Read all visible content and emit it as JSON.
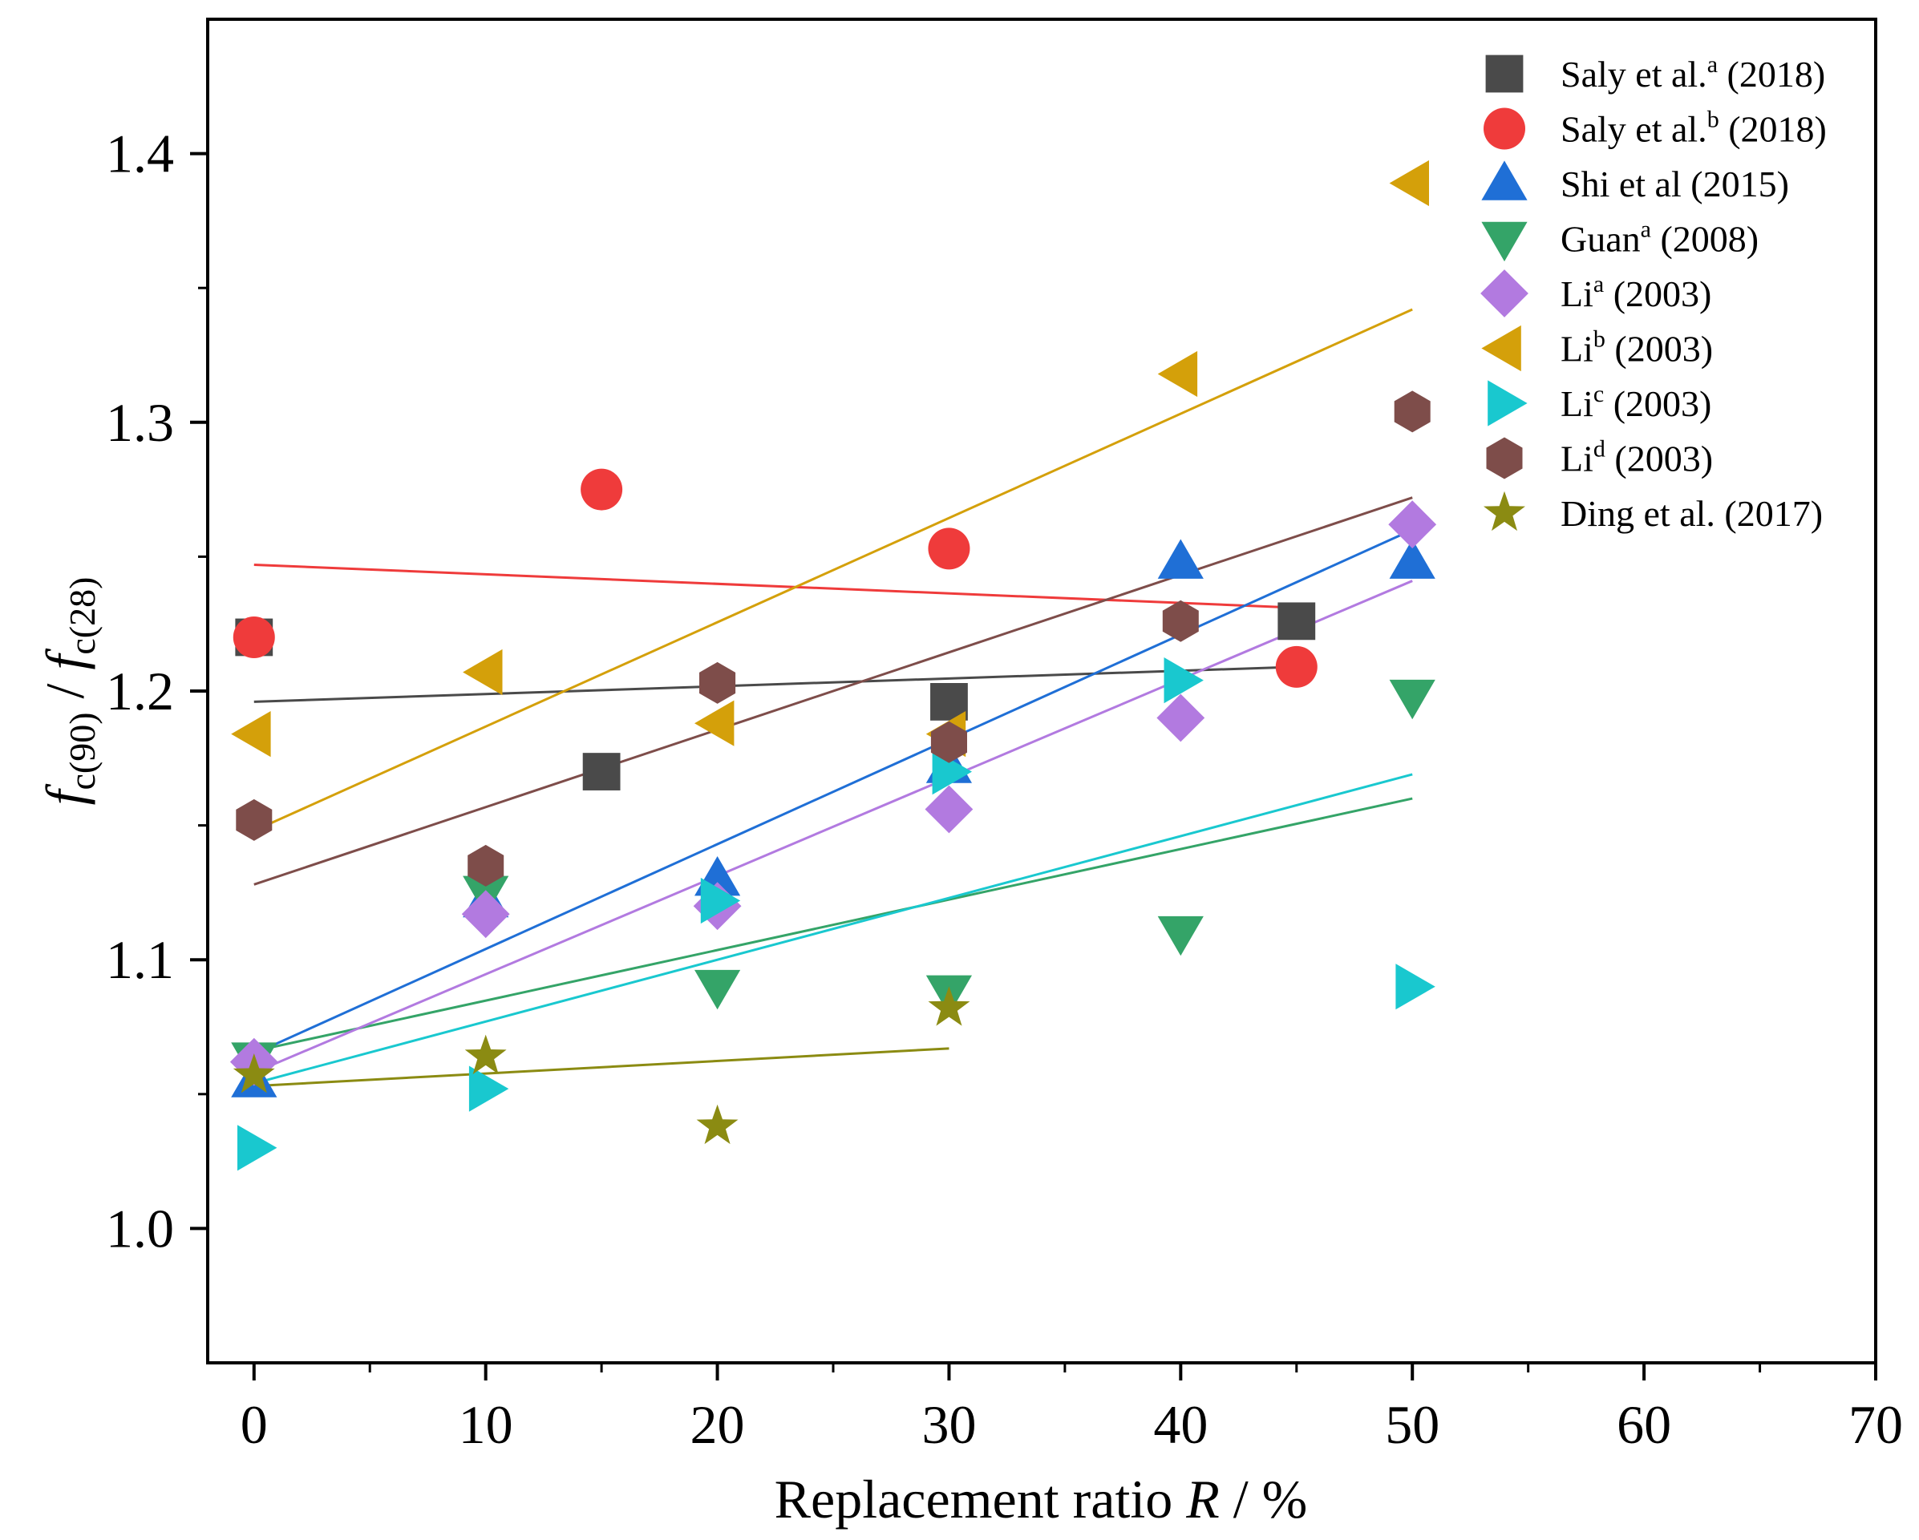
{
  "chart_data": {
    "type": "scatter",
    "title": "",
    "xlabel": {
      "prefix": "Replacement ratio ",
      "var": "R",
      "suffix": " / %"
    },
    "ylabel": {
      "f1": "f",
      "sub1": "c(90)",
      "mid": " / ",
      "f2": "f",
      "sub2": "c(28)"
    },
    "xlim": [
      -2,
      70
    ],
    "ylim": [
      0.95,
      1.45
    ],
    "xticks": [
      0,
      10,
      20,
      30,
      40,
      50,
      60,
      70
    ],
    "yticks": [
      1.0,
      1.1,
      1.2,
      1.3,
      1.4
    ],
    "xtick_labels": [
      "0",
      "10",
      "20",
      "30",
      "40",
      "50",
      "60",
      "70"
    ],
    "ytick_labels": [
      "1.0",
      "1.1",
      "1.2",
      "1.3",
      "1.4"
    ],
    "legend_position": "top-right",
    "series": [
      {
        "name": "Saly et al.",
        "sup": "a",
        "year": "(2018)",
        "marker": "square",
        "color": "#4a4a4a",
        "points": [
          [
            0,
            1.22
          ],
          [
            15,
            1.17
          ],
          [
            30,
            1.196
          ],
          [
            45,
            1.226
          ]
        ],
        "fit": [
          [
            0,
            1.196
          ],
          [
            45,
            1.209
          ]
        ]
      },
      {
        "name": "Saly et al.",
        "sup": "b",
        "year": "(2018)",
        "marker": "circle",
        "color": "#ef3b3b",
        "points": [
          [
            0,
            1.22
          ],
          [
            15,
            1.275
          ],
          [
            30,
            1.253
          ],
          [
            45,
            1.209
          ]
        ],
        "fit": [
          [
            0,
            1.247
          ],
          [
            45,
            1.231
          ]
        ]
      },
      {
        "name": "Shi et al",
        "sup": "",
        "year": "(2015)",
        "marker": "triangle-up",
        "color": "#1f6fd6",
        "points": [
          [
            0,
            1.055
          ],
          [
            10,
            1.122
          ],
          [
            20,
            1.13
          ],
          [
            30,
            1.172
          ],
          [
            40,
            1.248
          ],
          [
            50,
            1.248
          ]
        ],
        "fit": [
          [
            0,
            1.065
          ],
          [
            50,
            1.26
          ]
        ]
      },
      {
        "name": "Guan",
        "sup": "a",
        "year": "(2008)",
        "marker": "triangle-down",
        "color": "#34a468",
        "points": [
          [
            0,
            1.063
          ],
          [
            10,
            1.125
          ],
          [
            20,
            1.09
          ],
          [
            30,
            1.088
          ],
          [
            40,
            1.11
          ],
          [
            50,
            1.198
          ]
        ],
        "fit": [
          [
            0,
            1.066
          ],
          [
            50,
            1.16
          ]
        ]
      },
      {
        "name": "Li",
        "sup": "a",
        "year": "(2003)",
        "marker": "diamond",
        "color": "#b27ae0",
        "points": [
          [
            0,
            1.062
          ],
          [
            10,
            1.117
          ],
          [
            20,
            1.12
          ],
          [
            30,
            1.156
          ],
          [
            40,
            1.19
          ],
          [
            50,
            1.262
          ]
        ],
        "fit": [
          [
            0,
            1.058
          ],
          [
            50,
            1.241
          ]
        ]
      },
      {
        "name": "Li",
        "sup": "b",
        "year": "(2003)",
        "marker": "triangle-left",
        "color": "#d4a00a",
        "points": [
          [
            0,
            1.184
          ],
          [
            10,
            1.207
          ],
          [
            20,
            1.188
          ],
          [
            30,
            1.184
          ],
          [
            40,
            1.318
          ],
          [
            50,
            1.389
          ]
        ],
        "fit": [
          [
            0,
            1.148
          ],
          [
            50,
            1.342
          ]
        ]
      },
      {
        "name": "Li",
        "sup": "c",
        "year": "(2003)",
        "marker": "triangle-right",
        "color": "#19c8cf",
        "points": [
          [
            0,
            1.03
          ],
          [
            10,
            1.052
          ],
          [
            20,
            1.122
          ],
          [
            30,
            1.17
          ],
          [
            40,
            1.204
          ],
          [
            50,
            1.09
          ]
        ],
        "fit": [
          [
            0,
            1.054
          ],
          [
            50,
            1.169
          ]
        ]
      },
      {
        "name": "Li",
        "sup": "d",
        "year": "(2003)",
        "marker": "hexagon",
        "color": "#7e4d4a",
        "points": [
          [
            0,
            1.152
          ],
          [
            10,
            1.135
          ],
          [
            20,
            1.203
          ],
          [
            30,
            1.181
          ],
          [
            40,
            1.226
          ],
          [
            50,
            1.304
          ]
        ],
        "fit": [
          [
            0,
            1.128
          ],
          [
            50,
            1.272
          ]
        ]
      },
      {
        "name": "Ding et al.",
        "sup": "",
        "year": "(2017)",
        "marker": "star",
        "color": "#8b8b12",
        "points": [
          [
            0,
            1.057
          ],
          [
            10,
            1.064
          ],
          [
            20,
            1.038
          ],
          [
            30,
            1.082
          ]
        ],
        "fit": [
          [
            0,
            1.053
          ],
          [
            30,
            1.067
          ]
        ]
      }
    ]
  }
}
